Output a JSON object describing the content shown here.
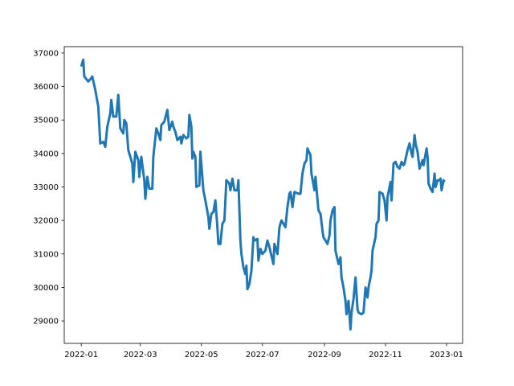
{
  "chart_data": {
    "type": "line",
    "x": [
      0,
      2,
      3,
      7,
      10,
      11,
      14,
      17,
      19,
      22,
      24,
      26,
      29,
      30,
      32,
      35,
      37,
      39,
      42,
      43,
      45,
      47,
      51,
      52,
      54,
      57,
      58,
      60,
      63,
      64,
      66,
      68,
      71,
      72,
      75,
      77,
      79,
      80,
      83,
      86,
      88,
      91,
      92,
      94,
      96,
      99,
      100,
      102,
      105,
      107,
      108,
      110,
      111,
      112,
      114,
      115,
      118,
      119,
      122,
      124,
      127,
      128,
      130,
      132,
      134,
      136,
      137,
      139,
      141,
      143,
      145,
      148,
      149,
      151,
      153,
      156,
      157,
      159,
      160,
      162,
      164,
      165,
      166,
      168,
      170,
      172,
      173,
      176,
      177,
      179,
      181,
      184,
      186,
      188,
      192,
      193,
      196,
      198,
      200,
      204,
      206,
      208,
      209,
      211,
      213,
      217,
      219,
      221,
      223,
      225,
      226,
      229,
      230,
      233,
      234,
      237,
      239,
      241,
      242,
      244,
      246,
      248,
      249,
      251,
      253,
      254,
      257,
      259,
      260,
      262,
      264,
      265,
      267,
      269,
      270,
      272,
      274,
      276,
      277,
      280,
      282,
      284,
      286,
      287,
      289,
      290,
      291,
      294,
      295,
      297,
      298,
      301,
      303,
      305,
      306,
      309,
      310,
      312,
      314,
      316,
      318,
      320,
      322,
      323,
      326,
      328,
      330,
      331,
      333,
      334,
      336,
      338,
      341,
      342,
      345,
      346,
      347,
      349,
      351,
      353,
      354,
      356,
      358,
      359,
      360,
      362,
      363
    ],
    "series": [
      {
        "color": "#1f77b4",
        "values": [
          36600,
          36800,
          36300,
          36150,
          36250,
          36300,
          35900,
          35400,
          34300,
          34350,
          34200,
          34800,
          35200,
          35600,
          35100,
          35100,
          35750,
          34750,
          34600,
          35000,
          34900,
          34100,
          33700,
          33150,
          34050,
          33800,
          33300,
          33900,
          33200,
          32650,
          33300,
          32950,
          32950,
          33900,
          34750,
          34600,
          34400,
          34850,
          34950,
          35300,
          34700,
          34950,
          34800,
          34650,
          34400,
          34500,
          34300,
          34550,
          34450,
          34500,
          35150,
          34800,
          33850,
          34050,
          33900,
          33000,
          33050,
          34050,
          32900,
          32600,
          32100,
          31750,
          32200,
          32250,
          32600,
          31800,
          31300,
          31300,
          31900,
          32000,
          33200,
          33100,
          32900,
          33250,
          32900,
          32900,
          33200,
          31400,
          31000,
          30600,
          30400,
          30650,
          29950,
          30100,
          30500,
          31500,
          31400,
          31450,
          30800,
          31150,
          31000,
          31100,
          31400,
          31200,
          30700,
          31300,
          31000,
          31800,
          32000,
          31800,
          32400,
          32800,
          32850,
          32400,
          32850,
          32800,
          32800,
          33400,
          33700,
          33800,
          34150,
          33950,
          33400,
          32900,
          33300,
          32300,
          32200,
          31700,
          31500,
          31400,
          31300,
          31550,
          32000,
          32300,
          32400,
          31100,
          30700,
          30900,
          30300,
          30000,
          29600,
          29200,
          29600,
          28750,
          29250,
          29650,
          30300,
          29350,
          29250,
          29200,
          29250,
          30000,
          29700,
          30000,
          30300,
          30500,
          31100,
          31500,
          31900,
          32000,
          32850,
          32800,
          32600,
          32000,
          32700,
          33150,
          32600,
          33700,
          33750,
          33600,
          33550,
          33750,
          33650,
          33700,
          34100,
          34300,
          34000,
          33900,
          34550,
          34300,
          34050,
          33550,
          33800,
          33650,
          34150,
          33900,
          33100,
          32950,
          32850,
          33400,
          33000,
          33200,
          33200,
          33250,
          32900,
          33200,
          33150
        ]
      }
    ],
    "xlim": [
      -17,
      381
    ],
    "xticks": [
      {
        "value": 0,
        "label": "2022-01"
      },
      {
        "value": 59,
        "label": "2022-03"
      },
      {
        "value": 120,
        "label": "2022-05"
      },
      {
        "value": 181,
        "label": "2022-07"
      },
      {
        "value": 243,
        "label": "2022-09"
      },
      {
        "value": 304,
        "label": "2022-11"
      },
      {
        "value": 365,
        "label": "2023-01"
      }
    ],
    "ylim": [
      28330,
      37190
    ],
    "yticks": [
      29000,
      30000,
      31000,
      32000,
      33000,
      34000,
      35000,
      36000,
      37000
    ]
  }
}
